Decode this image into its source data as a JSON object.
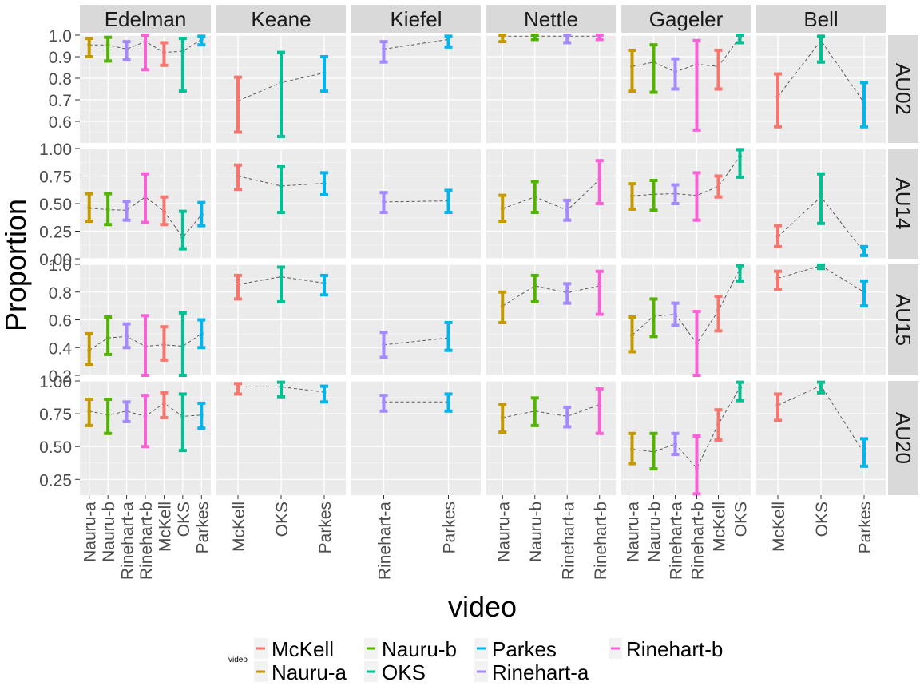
{
  "chart_data": {
    "type": "errorbar",
    "ylabel": "Proportion",
    "xlabel": "video",
    "legend": {
      "title": "video",
      "position": "bottom",
      "entries": [
        "McKell",
        "Nauru-a",
        "Nauru-b",
        "OKS",
        "Parkes",
        "Rinehart-a",
        "Rinehart-b"
      ]
    },
    "colors": {
      "McKell": "#F8766D",
      "Nauru-a": "#C49A00",
      "Nauru-b": "#53B400",
      "OKS": "#00C094",
      "Parkes": "#00B6EB",
      "Rinehart-a": "#A58AFF",
      "Rinehart-b": "#FB61D7"
    },
    "columns": [
      {
        "name": "Edelman",
        "categories": [
          "Nauru-a",
          "Nauru-b",
          "Rinehart-a",
          "Rinehart-b",
          "McKell",
          "OKS",
          "Parkes"
        ]
      },
      {
        "name": "Keane",
        "categories": [
          "McKell",
          "OKS",
          "Parkes"
        ]
      },
      {
        "name": "Kiefel",
        "categories": [
          "Rinehart-a",
          "Parkes"
        ]
      },
      {
        "name": "Nettle",
        "categories": [
          "Nauru-a",
          "Nauru-b",
          "Rinehart-a",
          "Rinehart-b"
        ]
      },
      {
        "name": "Gageler",
        "categories": [
          "Nauru-a",
          "Nauru-b",
          "Rinehart-a",
          "Rinehart-b",
          "McKell",
          "OKS"
        ]
      },
      {
        "name": "Bell",
        "categories": [
          "McKell",
          "OKS",
          "Parkes"
        ]
      }
    ],
    "rows": [
      {
        "name": "AU02",
        "ylim": [
          0.5,
          1.0
        ],
        "yticks": [
          "0.6",
          "0.7",
          "0.8",
          "0.9",
          "1.0"
        ],
        "panels": [
          [
            {
              "y": 0.955,
              "lo": 0.9,
              "hi": 0.985
            },
            {
              "y": 0.955,
              "lo": 0.88,
              "hi": 0.99
            },
            {
              "y": 0.935,
              "lo": 0.885,
              "hi": 0.97
            },
            {
              "y": 0.97,
              "lo": 0.84,
              "hi": 1.0
            },
            {
              "y": 0.92,
              "lo": 0.86,
              "hi": 0.965
            },
            {
              "y": 0.925,
              "lo": 0.74,
              "hi": 0.985
            },
            {
              "y": 0.98,
              "lo": 0.955,
              "hi": 0.995
            }
          ],
          [
            {
              "y": 0.695,
              "lo": 0.55,
              "hi": 0.805
            },
            {
              "y": 0.78,
              "lo": 0.53,
              "hi": 0.92
            },
            {
              "y": 0.825,
              "lo": 0.74,
              "hi": 0.9
            }
          ],
          [
            {
              "y": 0.935,
              "lo": 0.875,
              "hi": 0.97
            },
            {
              "y": 0.98,
              "lo": 0.945,
              "hi": 0.995
            }
          ],
          [
            {
              "y": 0.995,
              "lo": 0.97,
              "hi": 1.0
            },
            {
              "y": 0.995,
              "lo": 0.98,
              "hi": 1.0
            },
            {
              "y": 0.995,
              "lo": 0.965,
              "hi": 1.0
            },
            {
              "y": 0.995,
              "lo": 0.98,
              "hi": 1.0
            }
          ],
          [
            {
              "y": 0.855,
              "lo": 0.74,
              "hi": 0.93
            },
            {
              "y": 0.875,
              "lo": 0.735,
              "hi": 0.955
            },
            {
              "y": 0.83,
              "lo": 0.75,
              "hi": 0.89
            },
            {
              "y": 0.865,
              "lo": 0.56,
              "hi": 0.975
            },
            {
              "y": 0.855,
              "lo": 0.75,
              "hi": 0.93
            },
            {
              "y": 0.99,
              "lo": 0.965,
              "hi": 1.0
            }
          ],
          [
            {
              "y": 0.715,
              "lo": 0.575,
              "hi": 0.82
            },
            {
              "y": 0.975,
              "lo": 0.875,
              "hi": 0.995
            },
            {
              "y": 0.685,
              "lo": 0.575,
              "hi": 0.78
            }
          ]
        ]
      },
      {
        "name": "AU14",
        "ylim": [
          0.0,
          1.0
        ],
        "yticks": [
          "0.00",
          "0.25",
          "0.50",
          "0.75",
          "1.00"
        ],
        "panels": [
          [
            {
              "y": 0.46,
              "lo": 0.34,
              "hi": 0.59
            },
            {
              "y": 0.445,
              "lo": 0.31,
              "hi": 0.59
            },
            {
              "y": 0.44,
              "lo": 0.35,
              "hi": 0.52
            },
            {
              "y": 0.56,
              "lo": 0.33,
              "hi": 0.77
            },
            {
              "y": 0.43,
              "lo": 0.31,
              "hi": 0.56
            },
            {
              "y": 0.195,
              "lo": 0.09,
              "hi": 0.43
            },
            {
              "y": 0.4,
              "lo": 0.3,
              "hi": 0.51
            }
          ],
          [
            {
              "y": 0.75,
              "lo": 0.63,
              "hi": 0.85
            },
            {
              "y": 0.66,
              "lo": 0.42,
              "hi": 0.84
            },
            {
              "y": 0.685,
              "lo": 0.58,
              "hi": 0.78
            }
          ],
          [
            {
              "y": 0.515,
              "lo": 0.42,
              "hi": 0.6
            },
            {
              "y": 0.525,
              "lo": 0.42,
              "hi": 0.62
            }
          ],
          [
            {
              "y": 0.455,
              "lo": 0.34,
              "hi": 0.575
            },
            {
              "y": 0.56,
              "lo": 0.42,
              "hi": 0.7
            },
            {
              "y": 0.44,
              "lo": 0.35,
              "hi": 0.53
            },
            {
              "y": 0.72,
              "lo": 0.5,
              "hi": 0.89
            }
          ],
          [
            {
              "y": 0.57,
              "lo": 0.45,
              "hi": 0.68
            },
            {
              "y": 0.585,
              "lo": 0.44,
              "hi": 0.71
            },
            {
              "y": 0.59,
              "lo": 0.5,
              "hi": 0.67
            },
            {
              "y": 0.575,
              "lo": 0.35,
              "hi": 0.78
            },
            {
              "y": 0.655,
              "lo": 0.56,
              "hi": 0.75
            },
            {
              "y": 0.93,
              "lo": 0.74,
              "hi": 0.99
            }
          ],
          [
            {
              "y": 0.2,
              "lo": 0.11,
              "hi": 0.3
            },
            {
              "y": 0.56,
              "lo": 0.32,
              "hi": 0.77
            },
            {
              "y": 0.06,
              "lo": 0.03,
              "hi": 0.11
            }
          ]
        ]
      },
      {
        "name": "AU15",
        "ylim": [
          0.2,
          1.0
        ],
        "yticks": [
          "0.2",
          "0.4",
          "0.6",
          "0.8",
          "1.0"
        ],
        "panels": [
          [
            {
              "y": 0.38,
              "lo": 0.28,
              "hi": 0.5
            },
            {
              "y": 0.47,
              "lo": 0.35,
              "hi": 0.62
            },
            {
              "y": 0.48,
              "lo": 0.4,
              "hi": 0.57
            },
            {
              "y": 0.41,
              "lo": 0.2,
              "hi": 0.63
            },
            {
              "y": 0.42,
              "lo": 0.31,
              "hi": 0.55
            },
            {
              "y": 0.41,
              "lo": 0.2,
              "hi": 0.65
            },
            {
              "y": 0.5,
              "lo": 0.4,
              "hi": 0.6
            }
          ],
          [
            {
              "y": 0.855,
              "lo": 0.75,
              "hi": 0.92
            },
            {
              "y": 0.91,
              "lo": 0.73,
              "hi": 0.98
            },
            {
              "y": 0.865,
              "lo": 0.78,
              "hi": 0.92
            }
          ],
          [
            {
              "y": 0.42,
              "lo": 0.33,
              "hi": 0.51
            },
            {
              "y": 0.47,
              "lo": 0.38,
              "hi": 0.58
            }
          ],
          [
            {
              "y": 0.7,
              "lo": 0.58,
              "hi": 0.8
            },
            {
              "y": 0.845,
              "lo": 0.73,
              "hi": 0.92
            },
            {
              "y": 0.795,
              "lo": 0.72,
              "hi": 0.86
            },
            {
              "y": 0.845,
              "lo": 0.64,
              "hi": 0.95
            }
          ],
          [
            {
              "y": 0.49,
              "lo": 0.37,
              "hi": 0.62
            },
            {
              "y": 0.625,
              "lo": 0.48,
              "hi": 0.75
            },
            {
              "y": 0.64,
              "lo": 0.56,
              "hi": 0.72
            },
            {
              "y": 0.43,
              "lo": 0.2,
              "hi": 0.66
            },
            {
              "y": 0.665,
              "lo": 0.52,
              "hi": 0.77
            },
            {
              "y": 0.97,
              "lo": 0.88,
              "hi": 0.99
            }
          ],
          [
            {
              "y": 0.9,
              "lo": 0.82,
              "hi": 0.95
            },
            {
              "y": 0.99,
              "lo": 0.97,
              "hi": 0.995
            },
            {
              "y": 0.8,
              "lo": 0.7,
              "hi": 0.88
            }
          ]
        ]
      },
      {
        "name": "AU20",
        "ylim": [
          0.13,
          1.0
        ],
        "yticks": [
          "0.25",
          "0.50",
          "0.75",
          "1.00"
        ],
        "panels": [
          [
            {
              "y": 0.77,
              "lo": 0.66,
              "hi": 0.86
            },
            {
              "y": 0.74,
              "lo": 0.6,
              "hi": 0.86
            },
            {
              "y": 0.77,
              "lo": 0.69,
              "hi": 0.84
            },
            {
              "y": 0.73,
              "lo": 0.5,
              "hi": 0.89
            },
            {
              "y": 0.83,
              "lo": 0.72,
              "hi": 0.91
            },
            {
              "y": 0.73,
              "lo": 0.47,
              "hi": 0.9
            },
            {
              "y": 0.74,
              "lo": 0.64,
              "hi": 0.83
            }
          ],
          [
            {
              "y": 0.955,
              "lo": 0.9,
              "hi": 0.98
            },
            {
              "y": 0.955,
              "lo": 0.88,
              "hi": 0.99
            },
            {
              "y": 0.915,
              "lo": 0.84,
              "hi": 0.96
            }
          ],
          [
            {
              "y": 0.84,
              "lo": 0.77,
              "hi": 0.89
            },
            {
              "y": 0.84,
              "lo": 0.77,
              "hi": 0.9
            }
          ],
          [
            {
              "y": 0.72,
              "lo": 0.61,
              "hi": 0.82
            },
            {
              "y": 0.77,
              "lo": 0.66,
              "hi": 0.87
            },
            {
              "y": 0.73,
              "lo": 0.65,
              "hi": 0.8
            },
            {
              "y": 0.82,
              "lo": 0.6,
              "hi": 0.94
            }
          ],
          [
            {
              "y": 0.48,
              "lo": 0.37,
              "hi": 0.6
            },
            {
              "y": 0.46,
              "lo": 0.33,
              "hi": 0.6
            },
            {
              "y": 0.52,
              "lo": 0.44,
              "hi": 0.6
            },
            {
              "y": 0.335,
              "lo": 0.14,
              "hi": 0.58
            },
            {
              "y": 0.67,
              "lo": 0.55,
              "hi": 0.78
            },
            {
              "y": 0.95,
              "lo": 0.85,
              "hi": 0.99
            }
          ],
          [
            {
              "y": 0.815,
              "lo": 0.7,
              "hi": 0.9
            },
            {
              "y": 0.965,
              "lo": 0.91,
              "hi": 0.99
            },
            {
              "y": 0.45,
              "lo": 0.35,
              "hi": 0.56
            }
          ]
        ]
      }
    ]
  }
}
